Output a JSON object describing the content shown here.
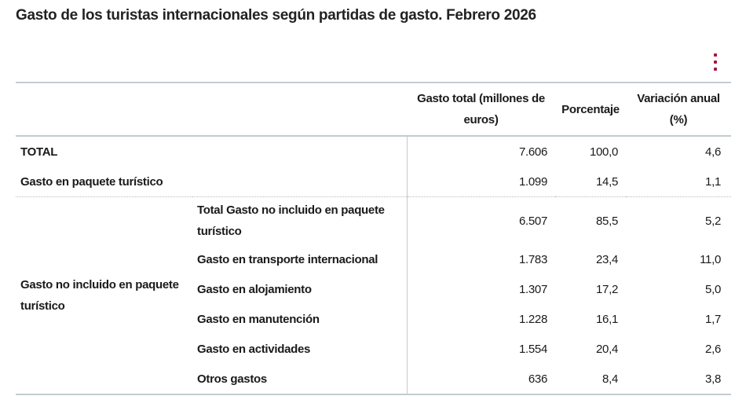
{
  "title": "Gasto de los turistas internacionales según partidas de gasto. Febrero 2026",
  "headers": {
    "gasto": "Gasto total (millones de euros)",
    "porcentaje": "Porcentaje",
    "variacion": "Variación anual (%)"
  },
  "rows": [
    {
      "label": "TOTAL",
      "gasto": "7.606",
      "porcentaje": "100,0",
      "variacion": "4,6"
    },
    {
      "label": "Gasto en paquete turístico",
      "gasto": "1.099",
      "porcentaje": "14,5",
      "variacion": "1,1"
    }
  ],
  "group": {
    "label": "Gasto no incluido en paquete turístico",
    "rows": [
      {
        "label": "Total Gasto no incluido en paquete turístico",
        "gasto": "6.507",
        "porcentaje": "85,5",
        "variacion": "5,2"
      },
      {
        "label": "Gasto en transporte internacional",
        "gasto": "1.783",
        "porcentaje": "23,4",
        "variacion": "11,0"
      },
      {
        "label": "Gasto en alojamiento",
        "gasto": "1.307",
        "porcentaje": "17,2",
        "variacion": "5,0"
      },
      {
        "label": "Gasto en manutención",
        "gasto": "1.228",
        "porcentaje": "16,1",
        "variacion": "1,7"
      },
      {
        "label": "Gasto en actividades",
        "gasto": "1.554",
        "porcentaje": "20,4",
        "variacion": "2,6"
      },
      {
        "label": "Otros gastos",
        "gasto": "636",
        "porcentaje": "8,4",
        "variacion": "3,8"
      }
    ]
  },
  "icons": {
    "menu": "kebab-menu-icon"
  },
  "colors": {
    "accent": "#a3173f",
    "border": "#c3ccd2"
  }
}
